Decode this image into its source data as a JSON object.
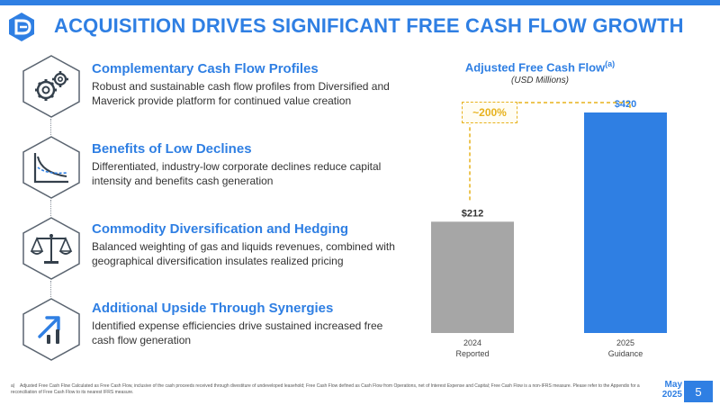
{
  "header": {
    "title": "ACQUISITION DRIVES SIGNIFICANT FREE CASH FLOW GROWTH"
  },
  "features": [
    {
      "icon": "gears-icon",
      "title": "Complementary Cash Flow Profiles",
      "description": "Robust and sustainable cash flow profiles from Diversified and Maverick provide platform for continued value creation"
    },
    {
      "icon": "decline-curve-icon",
      "title": "Benefits of Low Declines",
      "description": "Differentiated, industry-low corporate declines reduce capital intensity and benefits cash generation"
    },
    {
      "icon": "balance-scale-icon",
      "title": "Commodity Diversification and Hedging",
      "description": "Balanced weighting of gas and liquids revenues, combined with geographical diversification insulates realized pricing"
    },
    {
      "icon": "growth-arrow-icon",
      "title": "Additional Upside Through Synergies",
      "description": "Identified expense efficiencies drive sustained increased free cash flow generation"
    }
  ],
  "chart_data": {
    "type": "bar",
    "title": "Adjusted Free Cash Flow",
    "title_footnote_marker": "(a)",
    "subtitle": "(USD Millions)",
    "categories": [
      {
        "year": "2024",
        "label": "Reported"
      },
      {
        "year": "2025",
        "label": "Guidance"
      }
    ],
    "values": [
      212,
      420
    ],
    "value_labels": [
      "$212",
      "$420"
    ],
    "colors": [
      "#a6a6a6",
      "#2f7fe3"
    ],
    "ylim": [
      0,
      420
    ],
    "annotation": {
      "text": "~200%",
      "color": "#e7b21c",
      "style": "dashed"
    },
    "grid": false,
    "legend": "none"
  },
  "footnote": {
    "marker": "a)",
    "text": "Adjusted Free Cash Flow Calculated as Free Cash Flow, inclusive of the cash proceeds received through divestiture of undeveloped leasehold; Free Cash Flow defined as Cash Flow from Operations, net of Interest Expense and Capital; Free Cash Flow is a non-IFRS measure. Please refer to the Appendix for a reconciliation of Free Cash Flow to its nearest IFRS measure."
  },
  "footer": {
    "month": "May",
    "year": "2025",
    "page": "5"
  },
  "colors": {
    "brand_blue": "#2f7fe3",
    "bar_gray": "#a6a6a6",
    "accent_gold": "#e7b21c",
    "icon_border": "#5a6470"
  }
}
